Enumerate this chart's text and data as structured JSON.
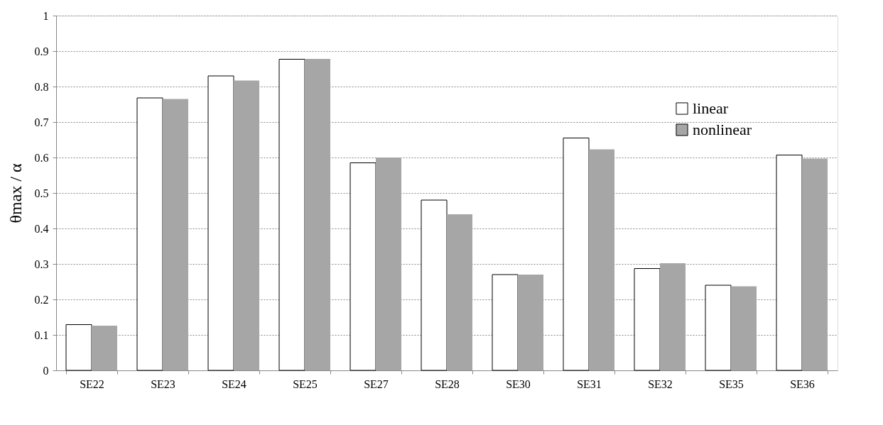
{
  "chart_data": {
    "type": "bar",
    "ylabel": "θmax / α",
    "categories": [
      "SE22",
      "SE23",
      "SE24",
      "SE25",
      "SE27",
      "SE28",
      "SE30",
      "SE31",
      "SE32",
      "SE35",
      "SE36"
    ],
    "series": [
      {
        "name": "linear",
        "color": "#ffffff",
        "values": [
          0.129,
          0.768,
          0.83,
          0.877,
          0.585,
          0.48,
          0.27,
          0.655,
          0.287,
          0.24,
          0.607
        ]
      },
      {
        "name": "nonlinear",
        "color": "#a6a6a6",
        "values": [
          0.126,
          0.765,
          0.817,
          0.878,
          0.6,
          0.44,
          0.27,
          0.623,
          0.302,
          0.237,
          0.597
        ]
      }
    ],
    "ylim": [
      0,
      1
    ],
    "yticks": [
      0,
      0.1,
      0.2,
      0.3,
      0.4,
      0.5,
      0.6,
      0.7,
      0.8,
      0.9,
      1
    ],
    "grid": "y",
    "legend": "top right"
  }
}
